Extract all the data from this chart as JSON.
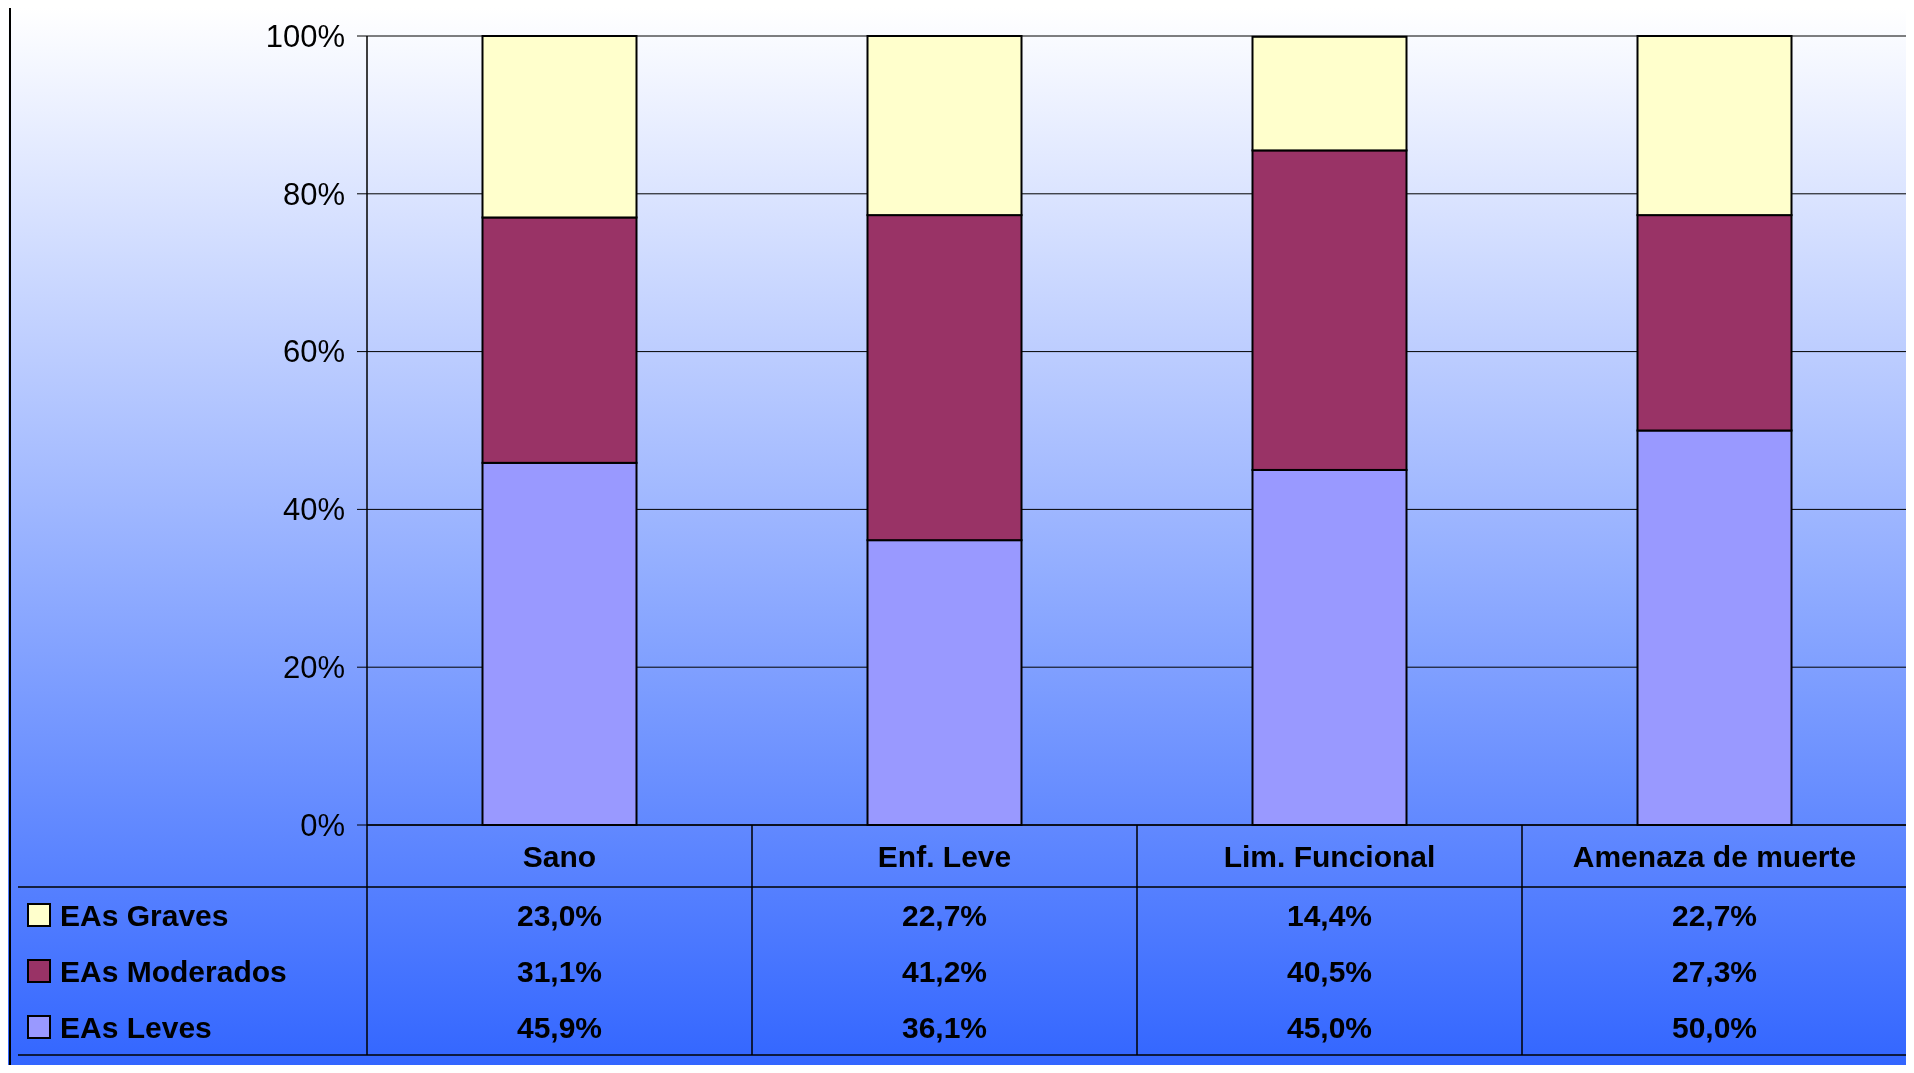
{
  "chart_data": {
    "type": "bar",
    "stacked": true,
    "categories": [
      "Sano",
      "Enf. Leve",
      "Lim. Funcional",
      "Amenaza de muerte"
    ],
    "series": [
      {
        "name": "EAs Leves",
        "color": "#9999ff",
        "values": [
          45.9,
          36.1,
          45.0,
          50.0
        ],
        "value_labels": [
          "45,9%",
          "36,1%",
          "45,0%",
          "50,0%"
        ]
      },
      {
        "name": "EAs Moderados",
        "color": "#993366",
        "values": [
          31.1,
          41.2,
          40.5,
          27.3
        ],
        "value_labels": [
          "31,1%",
          "41,2%",
          "40,5%",
          "27,3%"
        ]
      },
      {
        "name": "EAs Graves",
        "color": "#ffffcc",
        "values": [
          23.0,
          22.7,
          14.4,
          22.7
        ],
        "value_labels": [
          "23,0%",
          "22,7%",
          "14,4%",
          "22,7%"
        ]
      }
    ],
    "ylim": [
      0,
      100
    ],
    "yticks": [
      {
        "value": 0,
        "label": "0%"
      },
      {
        "value": 20,
        "label": "20%"
      },
      {
        "value": 40,
        "label": "40%"
      },
      {
        "value": 60,
        "label": "60%"
      },
      {
        "value": 80,
        "label": "80%"
      },
      {
        "value": 100,
        "label": "100%"
      }
    ],
    "grid": "y",
    "legend": "bottom left"
  }
}
